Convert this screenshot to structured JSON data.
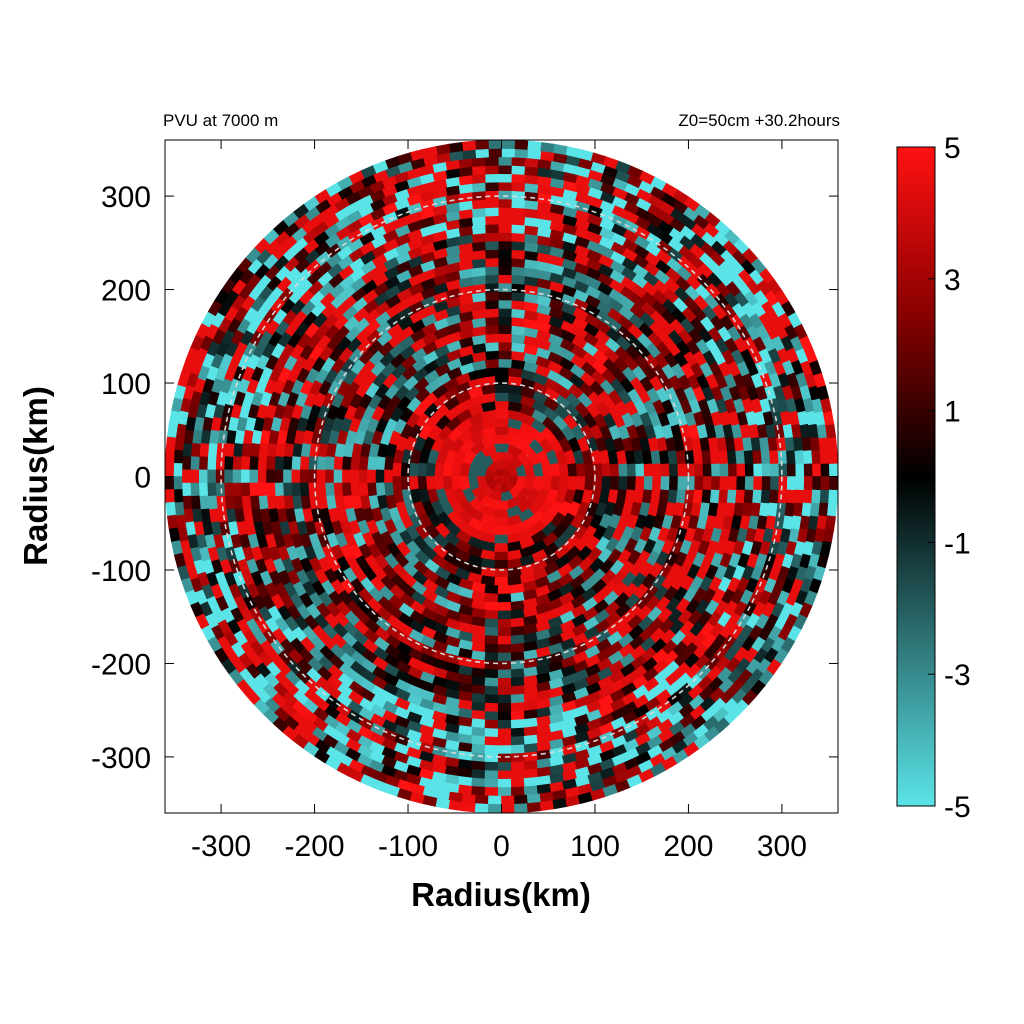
{
  "chart_data": {
    "type": "heatmap",
    "title_left": "PVU at  7000 m",
    "title_right": "Z0=50cm  +30.2hours",
    "xlabel": "Radius(km)",
    "ylabel": "Radius(km)",
    "xlim": [
      -360,
      360
    ],
    "ylim": [
      -360,
      360
    ],
    "x_ticks": [
      -300,
      -200,
      -100,
      0,
      100,
      200,
      300
    ],
    "y_ticks": [
      -300,
      -200,
      -100,
      0,
      100,
      200,
      300
    ],
    "x_tick_labels": [
      "-300",
      "-200",
      "-100",
      "0",
      "100",
      "200",
      "300"
    ],
    "y_tick_labels": [
      "-300",
      "-200",
      "-100",
      "0",
      "100",
      "200",
      "300"
    ],
    "domain_radius_km": 360,
    "range_rings_km": [
      100,
      200,
      300
    ],
    "grid": false,
    "colorbar": {
      "min": -5,
      "max": 5,
      "ticks": [
        5,
        3,
        1,
        -1,
        -3,
        -5
      ],
      "tick_labels": [
        "5",
        "3",
        "1",
        "-1",
        "-3",
        "-5"
      ],
      "stops": [
        {
          "value": -5,
          "color": "#5ae4e8"
        },
        {
          "value": -2.5,
          "color": "#2e7476"
        },
        {
          "value": 0,
          "color": "#000000"
        },
        {
          "value": 2.5,
          "color": "#8a0000"
        },
        {
          "value": 5,
          "color": "#ff1212"
        }
      ]
    },
    "features": {
      "core_high_pv_radius_km": 70,
      "core_value_pvu": 5,
      "background_pattern": "spiral bands of alternating positive (red) and negative (cyan) PV"
    }
  }
}
